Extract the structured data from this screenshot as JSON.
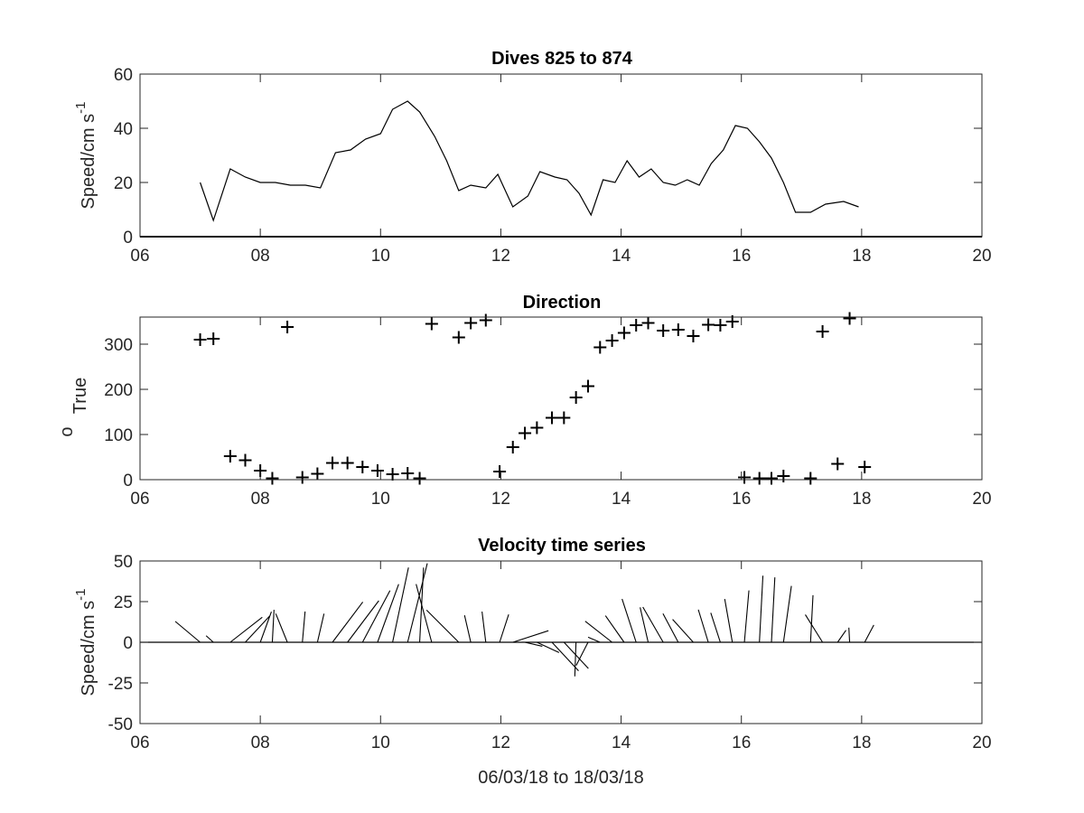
{
  "chart_data": [
    {
      "type": "line",
      "title": "Dives 825 to 874",
      "ylabel": "Speed/cm s",
      "ylabel_superscript": "-1",
      "xlim": [
        6,
        20
      ],
      "ylim": [
        0,
        60
      ],
      "xticks": [
        6,
        8,
        10,
        12,
        14,
        16,
        18,
        20
      ],
      "xtick_labels": [
        "06",
        "08",
        "10",
        "12",
        "14",
        "16",
        "18",
        "20"
      ],
      "yticks": [
        0,
        20,
        40,
        60
      ],
      "ytick_labels": [
        "0",
        "20",
        "40",
        "60"
      ],
      "zero_line": true,
      "series": [
        {
          "x": [
            7.0,
            7.22,
            7.5,
            7.75,
            8.0,
            8.25,
            8.5,
            8.75,
            9.0,
            9.25,
            9.5,
            9.75,
            10.0,
            10.2,
            10.45,
            10.65,
            10.9,
            11.1,
            11.3,
            11.5,
            11.75,
            11.95,
            12.2,
            12.45,
            12.65,
            12.9,
            13.1,
            13.3,
            13.5,
            13.7,
            13.9,
            14.1,
            14.3,
            14.5,
            14.7,
            14.9,
            15.1,
            15.3,
            15.5,
            15.7,
            15.9,
            16.1,
            16.3,
            16.5,
            16.7,
            16.9,
            17.15,
            17.4,
            17.7,
            17.95
          ],
          "y": [
            20,
            6,
            25,
            22,
            20,
            20,
            19,
            19,
            18,
            31,
            32,
            36,
            38,
            47,
            50,
            46,
            37,
            28,
            17,
            19,
            18,
            23,
            11,
            15,
            24,
            22,
            21,
            16,
            8,
            21,
            20,
            28,
            22,
            25,
            20,
            19,
            21,
            19,
            27,
            32,
            41,
            40,
            35,
            29,
            20,
            9,
            9,
            12,
            13,
            11
          ]
        }
      ]
    },
    {
      "type": "scatter",
      "title": "Direction",
      "ylabel": "True",
      "ylabel_prefix": "o",
      "xlim": [
        6,
        20
      ],
      "ylim": [
        0,
        360
      ],
      "xticks": [
        6,
        8,
        10,
        12,
        14,
        16,
        18,
        20
      ],
      "xtick_labels": [
        "06",
        "08",
        "10",
        "12",
        "14",
        "16",
        "18",
        "20"
      ],
      "yticks": [
        0,
        100,
        200,
        300
      ],
      "ytick_labels": [
        "0",
        "100",
        "200",
        "300"
      ],
      "marker": "+",
      "series": [
        {
          "x": [
            7.0,
            7.22,
            7.5,
            7.75,
            8.0,
            8.2,
            8.45,
            8.7,
            8.95,
            9.2,
            9.45,
            9.7,
            9.95,
            10.2,
            10.45,
            10.65,
            10.85,
            11.3,
            11.5,
            11.75,
            11.98,
            12.2,
            12.4,
            12.6,
            12.85,
            13.05,
            13.25,
            13.45,
            13.65,
            13.85,
            14.05,
            14.25,
            14.45,
            14.7,
            14.95,
            15.2,
            15.45,
            15.65,
            15.85,
            16.05,
            16.3,
            16.5,
            16.7,
            17.15,
            17.35,
            17.6,
            17.8,
            18.05
          ],
          "y": [
            310,
            312,
            52,
            43,
            20,
            3,
            338,
            5,
            13,
            37,
            37,
            28,
            20,
            12,
            14,
            3,
            345,
            315,
            347,
            353,
            18,
            72,
            103,
            115,
            137,
            137,
            182,
            207,
            293,
            308,
            325,
            342,
            347,
            330,
            332,
            318,
            343,
            342,
            350,
            5,
            3,
            3,
            8,
            3,
            328,
            35,
            357,
            28
          ]
        }
      ]
    },
    {
      "type": "quiver",
      "title": "Velocity time series",
      "xlabel": "06/03/18 to 18/03/18",
      "ylabel": "Speed/cm s",
      "ylabel_superscript": "-1",
      "xlim": [
        6,
        20
      ],
      "ylim": [
        -50,
        50
      ],
      "xticks": [
        6,
        8,
        10,
        12,
        14,
        16,
        18,
        20
      ],
      "xtick_labels": [
        "06",
        "08",
        "10",
        "12",
        "14",
        "16",
        "18",
        "20"
      ],
      "yticks": [
        -50,
        -25,
        0,
        25,
        50
      ],
      "ytick_labels": [
        "-50",
        "-25",
        "0",
        "25",
        "50"
      ],
      "zero_line": true,
      "series": [
        {
          "x": [
            7.0,
            7.22,
            7.5,
            7.75,
            8.0,
            8.2,
            8.45,
            8.7,
            8.95,
            9.2,
            9.45,
            9.7,
            9.95,
            10.2,
            10.45,
            10.65,
            10.85,
            11.3,
            11.5,
            11.75,
            11.98,
            12.2,
            12.4,
            12.6,
            12.85,
            13.05,
            13.25,
            13.45,
            13.65,
            13.85,
            14.05,
            14.25,
            14.45,
            14.7,
            14.95,
            15.2,
            15.45,
            15.65,
            15.85,
            16.05,
            16.3,
            16.5,
            16.7,
            17.15,
            17.35,
            17.6,
            17.8,
            18.05
          ],
          "speed": [
            20,
            6,
            25,
            22,
            20,
            20,
            19,
            19,
            18,
            31,
            32,
            36,
            38,
            47,
            50,
            46,
            37,
            28,
            17,
            19,
            18,
            23,
            11,
            15,
            24,
            22,
            21,
            16,
            8,
            21,
            20,
            28,
            22,
            25,
            20,
            19,
            21,
            19,
            27,
            32,
            41,
            40,
            35,
            29,
            20,
            9,
            9,
            12
          ],
          "direction": [
            310,
            312,
            52,
            43,
            20,
            3,
            338,
            5,
            13,
            37,
            37,
            28,
            20,
            12,
            14,
            3,
            345,
            315,
            347,
            353,
            18,
            72,
            103,
            115,
            137,
            137,
            182,
            207,
            293,
            308,
            325,
            342,
            347,
            330,
            332,
            318,
            343,
            342,
            350,
            5,
            3,
            3,
            8,
            3,
            328,
            35,
            357,
            28
          ]
        }
      ]
    }
  ]
}
